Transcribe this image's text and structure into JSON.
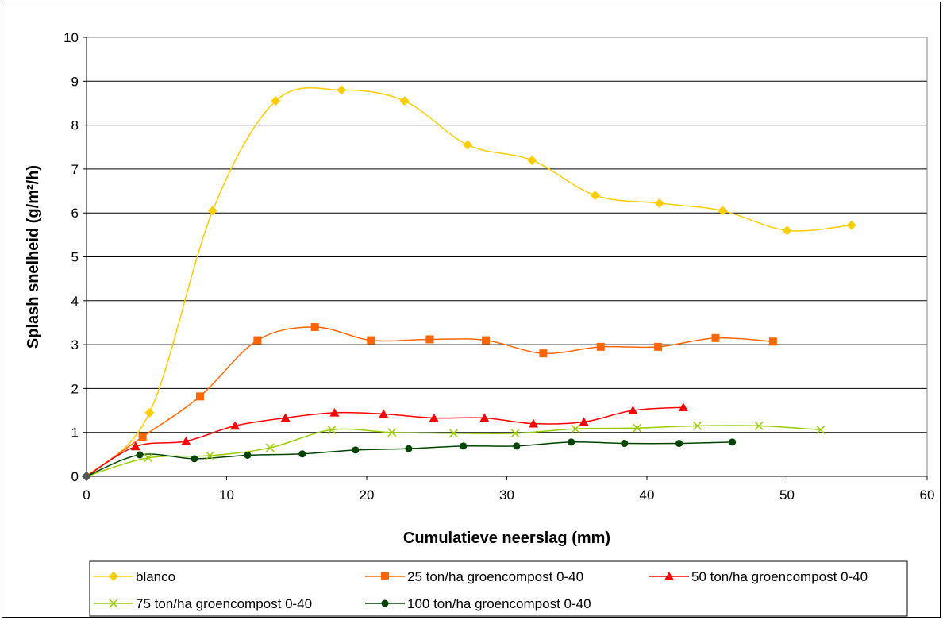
{
  "chart_data": {
    "type": "line",
    "title": "",
    "xlabel": "Cumulatieve neerslag (mm)",
    "ylabel": "Splash snelheid (g/m²/h)",
    "xlim": [
      0,
      60
    ],
    "ylim": [
      0,
      10
    ],
    "x_ticks": [
      "0",
      "10",
      "20",
      "30",
      "40",
      "50",
      "60"
    ],
    "y_ticks": [
      "0",
      "1",
      "2",
      "3",
      "4",
      "5",
      "6",
      "7",
      "8",
      "9",
      "10"
    ],
    "grid": "horizontal",
    "legend_position": "bottom",
    "smooth": true,
    "series": [
      {
        "name": "blanco",
        "color": "#FFCC00",
        "marker": "diamond",
        "x": [
          0,
          4.5,
          9.0,
          13.5,
          18.2,
          22.7,
          27.2,
          31.8,
          36.3,
          40.9,
          45.4,
          50.0,
          54.6
        ],
        "y": [
          0,
          1.45,
          6.05,
          8.55,
          8.8,
          8.55,
          7.55,
          7.2,
          6.4,
          6.22,
          6.05,
          5.6,
          5.72
        ]
      },
      {
        "name": "25 ton/ha groencompost 0-40",
        "color": "#FF6600",
        "marker": "square",
        "x": [
          0,
          4.0,
          8.1,
          12.2,
          16.3,
          20.3,
          24.5,
          28.5,
          32.6,
          36.7,
          40.8,
          44.9,
          49.0
        ],
        "y": [
          0,
          0.9,
          1.82,
          3.1,
          3.4,
          3.1,
          3.12,
          3.1,
          2.8,
          2.95,
          2.95,
          3.15,
          3.07
        ]
      },
      {
        "name": "50 ton/ha groencompost 0-40",
        "color": "#FF0000",
        "marker": "triangle",
        "x": [
          0,
          3.5,
          7.1,
          10.6,
          14.2,
          17.7,
          21.2,
          24.8,
          28.4,
          31.9,
          35.5,
          39.0,
          42.6
        ],
        "y": [
          0,
          0.68,
          0.8,
          1.15,
          1.33,
          1.45,
          1.42,
          1.33,
          1.33,
          1.2,
          1.24,
          1.5,
          1.57
        ]
      },
      {
        "name": "75 ton/ha groencompost 0-40",
        "color": "#99CC00",
        "marker": "x",
        "x": [
          0,
          4.4,
          8.8,
          13.1,
          17.5,
          21.8,
          26.2,
          30.6,
          34.9,
          39.3,
          43.6,
          48.0,
          52.4
        ],
        "y": [
          0,
          0.42,
          0.47,
          0.65,
          1.06,
          1.0,
          0.98,
          0.98,
          1.08,
          1.1,
          1.15,
          1.15,
          1.06
        ]
      },
      {
        "name": "100 ton/ha groencompost 0-40",
        "color": "#004400",
        "marker": "circle",
        "x": [
          0,
          3.8,
          7.7,
          11.5,
          15.4,
          19.2,
          23.0,
          26.9,
          30.7,
          34.6,
          38.4,
          42.3,
          46.1
        ],
        "y": [
          0,
          0.49,
          0.4,
          0.48,
          0.51,
          0.6,
          0.63,
          0.69,
          0.69,
          0.78,
          0.75,
          0.75,
          0.78
        ]
      }
    ]
  }
}
